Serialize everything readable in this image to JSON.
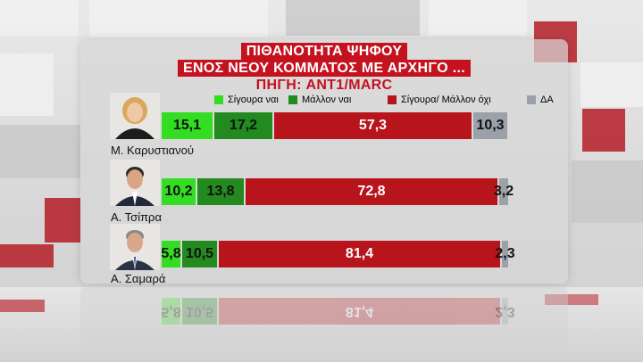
{
  "title_lines": [
    "ΠΙΘΑΝΟΤΗΤΑ ΨΗΦΟΥ",
    "ΕΝΟΣ ΝΕΟΥ ΚΟΜΜΑΤΟΣ ΜΕ ΑΡΧΗΓΟ ..."
  ],
  "source": "ΠΗΓΗ: ANT1/MARC",
  "colors": {
    "sigoura_nai": "#33dd22",
    "mallon_nai": "#238a1f",
    "sigoura_mallon_oxi": "#b8141c",
    "da": "#9aa1a8"
  },
  "chart_data": {
    "type": "bar",
    "orientation": "horizontal",
    "stacked": true,
    "categories": [
      "Μ. Καρυστιανού",
      "Α. Τσίπρα",
      "Α. Σαμαρά"
    ],
    "series": [
      {
        "name": "Σίγουρα ναι",
        "values": [
          15.1,
          10.2,
          5.8
        ],
        "color": "#33dd22"
      },
      {
        "name": "Μάλλον ναι",
        "values": [
          17.2,
          13.8,
          10.5
        ],
        "color": "#238a1f"
      },
      {
        "name": "Σίγουρα/ Μάλλον όχι",
        "values": [
          57.3,
          72.8,
          81.4
        ],
        "color": "#b8141c"
      },
      {
        "name": "ΔΑ",
        "values": [
          10.3,
          3.2,
          2.3
        ],
        "color": "#9aa1a8"
      }
    ],
    "value_labels": [
      [
        "15,1",
        "17,2",
        "57,3",
        "10,3"
      ],
      [
        "10,2",
        "13,8",
        "72,8",
        "3,2"
      ],
      [
        "5,8",
        "10,5",
        "81,4",
        "2,3"
      ]
    ],
    "legend_position": "top",
    "grid": false
  }
}
